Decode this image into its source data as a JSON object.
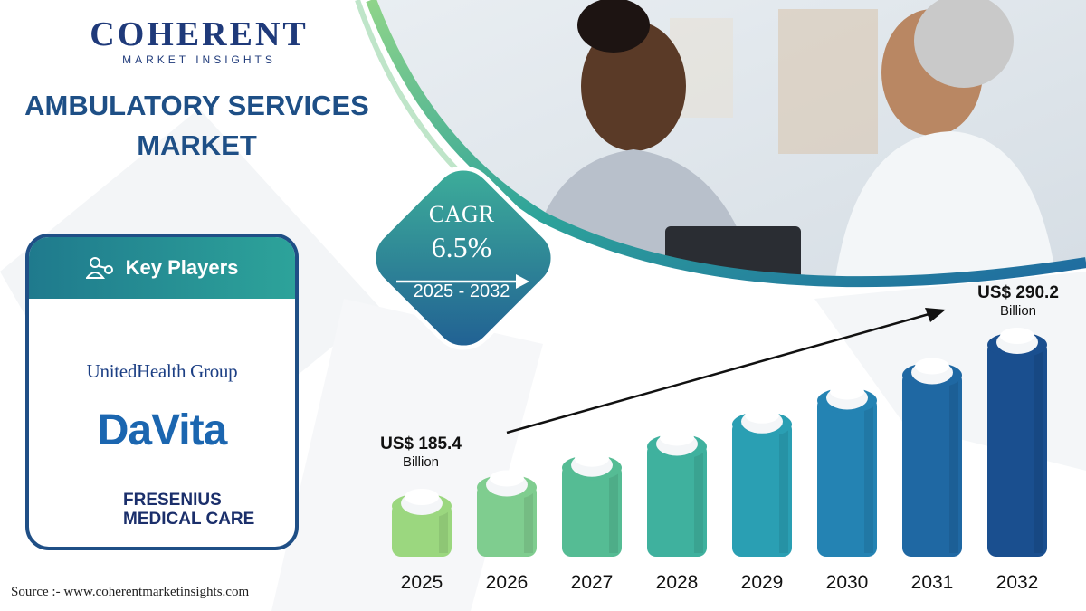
{
  "brand": {
    "name": "COHERENT",
    "tagline": "MARKET INSIGHTS"
  },
  "title_line1": "AMBULATORY SERVICES",
  "title_line2": "MARKET",
  "key_players": {
    "heading": "Key Players",
    "players": [
      "UnitedHealth Group",
      "DaVita",
      "FRESENIUS",
      "MEDICAL CARE"
    ]
  },
  "cagr": {
    "label": "CAGR",
    "value": "6.5%",
    "period": "2025 - 2032"
  },
  "annotations": {
    "start_value": "US$ 185.4",
    "start_unit": "Billion",
    "end_value": "US$ 290.2",
    "end_unit": "Billion"
  },
  "source": "Source :- www.coherentmarketinsights.com",
  "colors": {
    "primary": "#1f4f86",
    "teal": "#2da39a",
    "bars": [
      "#9bd77f",
      "#7fcd8f",
      "#55bc94",
      "#3fb19e",
      "#2a9fb3",
      "#2483b3",
      "#1f68a3",
      "#1a4f8f"
    ]
  },
  "chart_data": {
    "type": "bar",
    "title": "AMBULATORY SERVICES MARKET",
    "categories": [
      "2025",
      "2026",
      "2027",
      "2028",
      "2029",
      "2030",
      "2031",
      "2032"
    ],
    "values": [
      185.4,
      197.5,
      210.3,
      224.0,
      238.5,
      254.0,
      270.5,
      290.2
    ],
    "unit": "US$ Billion",
    "ylim": [
      140,
      300
    ],
    "grid": false,
    "legend": "none"
  }
}
